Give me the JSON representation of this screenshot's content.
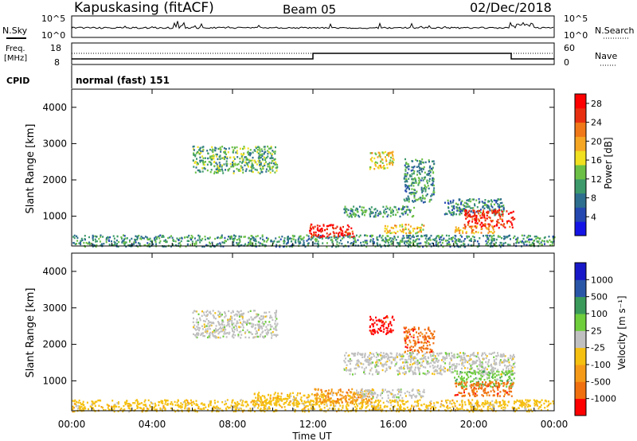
{
  "header": {
    "station": "Kapuskasing (fitACF)",
    "beam": "Beam 05",
    "date": "02/Dec/2018"
  },
  "strips": {
    "nsky_label": "N.Sky",
    "nsky_ticks": [
      "10^5",
      "10^0"
    ],
    "nsearch_label": "N.Search",
    "nsearch_ticks": [
      "10^5",
      "10^0"
    ],
    "freq_label_top": "Freq.",
    "freq_label_bottom": "[MHz]",
    "freq_ticks": [
      "18",
      "8"
    ],
    "nave_label": "Nave",
    "nave_ticks": [
      "60",
      "0"
    ],
    "cpid_label": "CPID",
    "cpid_value": "normal (fast) 151"
  },
  "chart_data": [
    {
      "type": "heatmap",
      "name": "power",
      "ylabel": "Slant Range [km]",
      "xlabel": "Time UT",
      "ylim": [
        180,
        4500
      ],
      "yticks": [
        1000,
        2000,
        3000,
        4000
      ],
      "xticks": [
        "00:00",
        "04:00",
        "08:00",
        "12:00",
        "16:00",
        "20:00",
        "00:00"
      ],
      "xlim_hours": [
        0,
        24
      ],
      "colorbar": {
        "label": "Power [dB]",
        "ticks": [
          "4",
          "8",
          "12",
          "16",
          "20",
          "24",
          "28"
        ],
        "range": [
          0,
          30
        ],
        "colors": [
          "#1414e6",
          "#2548b0",
          "#2e6e8e",
          "#3d9a6a",
          "#6cc046",
          "#f0e020",
          "#f5a623",
          "#f07818",
          "#e83010",
          "#ff0000"
        ]
      },
      "regions": [
        {
          "t": [
            6.0,
            10.2
          ],
          "r": [
            2200,
            2950
          ],
          "level": 12
        },
        {
          "t": [
            0.0,
            24.0
          ],
          "r": [
            180,
            500
          ],
          "level": 10
        },
        {
          "t": [
            11.8,
            14.0
          ],
          "r": [
            450,
            800
          ],
          "level": 28
        },
        {
          "t": [
            14.8,
            16.0
          ],
          "r": [
            2300,
            2800
          ],
          "level": 17
        },
        {
          "t": [
            13.5,
            17.0
          ],
          "r": [
            1000,
            1300
          ],
          "level": 10
        },
        {
          "t": [
            16.5,
            18.0
          ],
          "r": [
            1400,
            2600
          ],
          "level": 10
        },
        {
          "t": [
            15.5,
            17.5
          ],
          "r": [
            550,
            800
          ],
          "level": 18
        },
        {
          "t": [
            18.5,
            21.5
          ],
          "r": [
            1050,
            1500
          ],
          "level": 9
        },
        {
          "t": [
            19.5,
            22.0
          ],
          "r": [
            700,
            1200
          ],
          "level": 27
        },
        {
          "t": [
            19.0,
            21.0
          ],
          "r": [
            550,
            750
          ],
          "level": 20
        }
      ]
    },
    {
      "type": "heatmap",
      "name": "velocity",
      "ylabel": "Slant Range [km]",
      "xlabel": "Time UT",
      "ylim": [
        180,
        4500
      ],
      "yticks": [
        1000,
        2000,
        3000,
        4000
      ],
      "xticks": [
        "00:00",
        "04:00",
        "08:00",
        "12:00",
        "16:00",
        "20:00",
        "00:00"
      ],
      "xlim_hours": [
        0,
        24
      ],
      "colorbar": {
        "label": "Velocity [m s⁻¹]",
        "ticks": [
          "1000",
          "500",
          "100",
          "25",
          "-25",
          "-100",
          "-500",
          "-1000"
        ],
        "colors": [
          "#1818c8",
          "#2a56a8",
          "#3a9a5a",
          "#6fce3c",
          "#c0c0c0",
          "#f5c010",
          "#f59a18",
          "#f07010",
          "#ff0000"
        ]
      },
      "regions": [
        {
          "t": [
            6.0,
            10.2
          ],
          "r": [
            2200,
            2950
          ],
          "level": 4
        },
        {
          "t": [
            0.0,
            24.0
          ],
          "r": [
            180,
            500
          ],
          "level": 5
        },
        {
          "t": [
            9.0,
            13.0
          ],
          "r": [
            350,
            700
          ],
          "level": 5
        },
        {
          "t": [
            12.0,
            15.0
          ],
          "r": [
            400,
            800
          ],
          "level": 6
        },
        {
          "t": [
            14.8,
            16.0
          ],
          "r": [
            2300,
            2800
          ],
          "level": 8
        },
        {
          "t": [
            16.5,
            18.0
          ],
          "r": [
            1800,
            2500
          ],
          "level": 7
        },
        {
          "t": [
            13.5,
            22.0
          ],
          "r": [
            1200,
            1800
          ],
          "level": 4
        },
        {
          "t": [
            14.0,
            17.5
          ],
          "r": [
            550,
            800
          ],
          "level": 4
        },
        {
          "t": [
            19.0,
            22.0
          ],
          "r": [
            850,
            1300
          ],
          "level": 3
        },
        {
          "t": [
            19.0,
            22.0
          ],
          "r": [
            600,
            1000
          ],
          "level": 7
        }
      ]
    }
  ]
}
